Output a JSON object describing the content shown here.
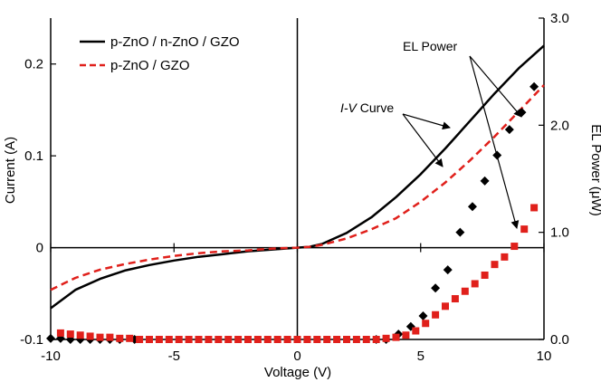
{
  "chart_data": {
    "type": "scatter",
    "xlabel": "Voltage (V)",
    "ylabel_left": "Current (A)",
    "ylabel_right": "EL Power (μW)",
    "xlim": [
      -10,
      10
    ],
    "ylim_left": [
      -0.1,
      0.25
    ],
    "ylim_right": [
      0.0,
      3.0
    ],
    "x_ticks": [
      "-10",
      "-5",
      "0",
      "5",
      "10"
    ],
    "y_left_ticks": [
      "-0.1",
      "0",
      "0.1",
      "0.2"
    ],
    "y_right_ticks": [
      "0.0",
      "1.0",
      "2.0",
      "3.0"
    ],
    "grid": false,
    "legend_position": "top-left",
    "annotations": {
      "el_power": "EL Power",
      "iv_italic": "I-V",
      "iv_rest": " Curve"
    },
    "series": [
      {
        "name": "p-ZnO / n-ZnO / GZO",
        "type": "line",
        "axis": "left",
        "color": "#000000",
        "dash": "solid",
        "x": [
          -10,
          -9,
          -8,
          -7,
          -6,
          -5,
          -4,
          -3,
          -2,
          -1,
          0,
          0.5,
          1,
          2,
          3,
          4,
          5,
          6,
          7,
          8,
          9,
          10
        ],
        "y": [
          -0.066,
          -0.046,
          -0.034,
          -0.025,
          -0.019,
          -0.014,
          -0.01,
          -0.007,
          -0.004,
          -0.002,
          0,
          0.001,
          0.004,
          0.016,
          0.033,
          0.055,
          0.08,
          0.108,
          0.138,
          0.168,
          0.196,
          0.22
        ]
      },
      {
        "name": "p-ZnO / GZO",
        "type": "line",
        "axis": "left",
        "color": "#e0201b",
        "dash": "dashed",
        "x": [
          -10,
          -9,
          -8,
          -7,
          -6,
          -5,
          -4,
          -3,
          -2,
          -1,
          0,
          0.5,
          1,
          2,
          3,
          4,
          5,
          6,
          7,
          8,
          9,
          10
        ],
        "y": [
          -0.046,
          -0.033,
          -0.024,
          -0.018,
          -0.013,
          -0.009,
          -0.006,
          -0.004,
          -0.003,
          -0.001,
          0,
          0.001,
          0.003,
          0.01,
          0.02,
          0.032,
          0.05,
          0.071,
          0.095,
          0.121,
          0.149,
          0.177
        ]
      },
      {
        "name": "",
        "type": "scatter",
        "axis": "right",
        "marker": "diamond",
        "color": "#000000",
        "x": [
          -10.0,
          -9.6,
          -9.2,
          -8.8,
          -8.4,
          -8.0,
          -7.6,
          -7.2,
          -6.6,
          3.2,
          3.6,
          4.1,
          4.6,
          5.1,
          5.6,
          6.1,
          6.6,
          7.1,
          7.6,
          8.1,
          8.6,
          9.1,
          9.6
        ],
        "y": [
          0.01,
          0.01,
          0.0,
          0.0,
          0.0,
          0.0,
          0.0,
          0.0,
          0.0,
          0.0,
          0.0,
          0.05,
          0.12,
          0.22,
          0.48,
          0.65,
          1.0,
          1.24,
          1.48,
          1.72,
          1.96,
          2.12,
          2.36
        ]
      },
      {
        "name": "",
        "type": "scatter",
        "axis": "right",
        "marker": "square",
        "color": "#e0201b",
        "x": [
          -9.6,
          -9.2,
          -8.8,
          -8.4,
          -8.0,
          -7.6,
          -7.2,
          -6.8,
          -6.4,
          -6.0,
          -5.6,
          -5.2,
          -4.8,
          -4.4,
          -4.0,
          -3.6,
          -3.2,
          -2.8,
          -2.4,
          -2.0,
          -1.6,
          -1.2,
          -0.8,
          -0.4,
          0.0,
          0.4,
          0.8,
          1.2,
          1.6,
          2.0,
          2.4,
          2.8,
          3.2,
          3.6,
          4.0,
          4.4,
          4.8,
          5.2,
          5.6,
          6.0,
          6.4,
          6.8,
          7.2,
          7.6,
          8.0,
          8.4,
          8.8,
          9.2,
          9.6
        ],
        "y": [
          0.06,
          0.05,
          0.04,
          0.03,
          0.02,
          0.02,
          0.01,
          0.01,
          0.0,
          0.0,
          0.0,
          0.0,
          0.0,
          0.0,
          0.0,
          0.0,
          0.0,
          0.0,
          0.0,
          0.0,
          0.0,
          0.0,
          0.0,
          0.0,
          0.0,
          0.0,
          0.0,
          0.0,
          0.0,
          0.0,
          0.0,
          0.0,
          0.0,
          0.01,
          0.02,
          0.04,
          0.08,
          0.15,
          0.23,
          0.31,
          0.38,
          0.45,
          0.52,
          0.6,
          0.7,
          0.77,
          0.87,
          1.03,
          1.23
        ]
      }
    ]
  }
}
